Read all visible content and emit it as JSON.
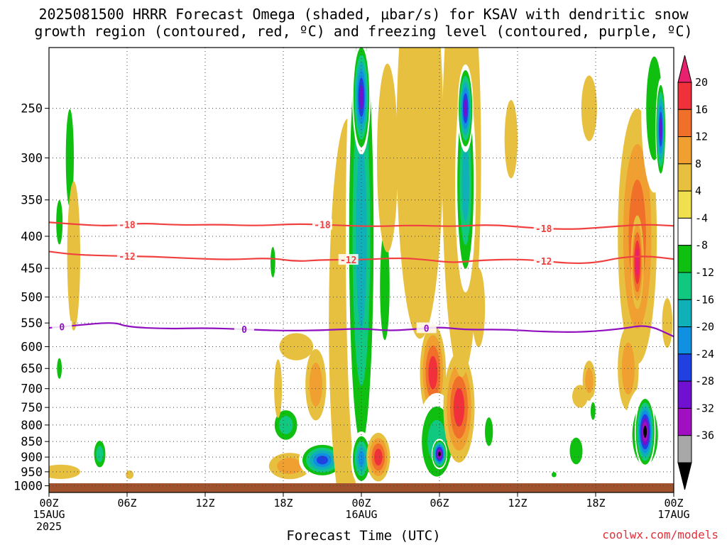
{
  "title_line1": "2025081500 HRRR Forecast Omega (shaded, μbar/s) for KSAV with dendritic snow",
  "title_line2": "growth region (contoured, red, ºC) and freezing level (contoured, purple, ºC)",
  "credit": "coolwx.com/models",
  "chart_data": {
    "type": "heatmap",
    "xlabel": "Forecast Time (UTC)",
    "x_range_hours": [
      0,
      48
    ],
    "x_ticks": [
      {
        "hour": 0,
        "label": "00Z",
        "sub1": "15AUG",
        "sub2": "2025"
      },
      {
        "hour": 6,
        "label": "06Z",
        "sub1": "",
        "sub2": ""
      },
      {
        "hour": 12,
        "label": "12Z",
        "sub1": "",
        "sub2": ""
      },
      {
        "hour": 18,
        "label": "18Z",
        "sub1": "",
        "sub2": ""
      },
      {
        "hour": 24,
        "label": "00Z",
        "sub1": "16AUG",
        "sub2": ""
      },
      {
        "hour": 30,
        "label": "06Z",
        "sub1": "",
        "sub2": ""
      },
      {
        "hour": 36,
        "label": "12Z",
        "sub1": "",
        "sub2": ""
      },
      {
        "hour": 42,
        "label": "18Z",
        "sub1": "",
        "sub2": ""
      },
      {
        "hour": 48,
        "label": "00Z",
        "sub1": "17AUG",
        "sub2": ""
      }
    ],
    "y_axis_scale": "log-pressure",
    "y_range_hPa": [
      1025,
      200
    ],
    "y_ticks": [
      250,
      300,
      350,
      400,
      450,
      500,
      550,
      600,
      650,
      700,
      750,
      800,
      850,
      900,
      950,
      1000
    ],
    "grid": true,
    "colorbar": {
      "levels": [
        20,
        16,
        12,
        8,
        4,
        -4,
        -8,
        -12,
        -16,
        -20,
        -24,
        -28,
        -32,
        -36
      ],
      "colors": [
        "#e8206e",
        "#f0303a",
        "#f0702a",
        "#f0a030",
        "#e8c040",
        "#f0e050",
        "#ffffff",
        "#10c010",
        "#10c880",
        "#10b0b8",
        "#1090e0",
        "#2040e0",
        "#7010d0",
        "#a010c0",
        "#a8a8a8",
        "#000000"
      ]
    },
    "contours": [
      {
        "label": "-18",
        "color": "#f04040",
        "points": [
          [
            0,
            380
          ],
          [
            3,
            384
          ],
          [
            5,
            385
          ],
          [
            7,
            381
          ],
          [
            10,
            384
          ],
          [
            13,
            383
          ],
          [
            16,
            385
          ],
          [
            19,
            382
          ],
          [
            22,
            384
          ],
          [
            25,
            386
          ],
          [
            28,
            384
          ],
          [
            31,
            386
          ],
          [
            34,
            383
          ],
          [
            37,
            388
          ],
          [
            40,
            390
          ],
          [
            42,
            388
          ],
          [
            44,
            385
          ],
          [
            46,
            383
          ],
          [
            48,
            385
          ]
        ],
        "label_hours": [
          6,
          21,
          38
        ]
      },
      {
        "label": "-12",
        "color": "#f04040",
        "points": [
          [
            0,
            423
          ],
          [
            2,
            428
          ],
          [
            5,
            430
          ],
          [
            8,
            431
          ],
          [
            11,
            434
          ],
          [
            14,
            436
          ],
          [
            17,
            433
          ],
          [
            19,
            439
          ],
          [
            21,
            436
          ],
          [
            24,
            436
          ],
          [
            27,
            433
          ],
          [
            29,
            436
          ],
          [
            31,
            441
          ],
          [
            33,
            437
          ],
          [
            36,
            435
          ],
          [
            38,
            438
          ],
          [
            40,
            442
          ],
          [
            42,
            441
          ],
          [
            44,
            432
          ],
          [
            46,
            430
          ],
          [
            48,
            435
          ]
        ],
        "label_hours": [
          6,
          23,
          38
        ]
      },
      {
        "label": "0",
        "color": "#9010c0",
        "points": [
          [
            0,
            560
          ],
          [
            2,
            555
          ],
          [
            5,
            548
          ],
          [
            6,
            558
          ],
          [
            9,
            562
          ],
          [
            12,
            560
          ],
          [
            15,
            563
          ],
          [
            18,
            566
          ],
          [
            21,
            565
          ],
          [
            24,
            561
          ],
          [
            26,
            566
          ],
          [
            28,
            563
          ],
          [
            30,
            558
          ],
          [
            32,
            564
          ],
          [
            35,
            563
          ],
          [
            38,
            568
          ],
          [
            41,
            569
          ],
          [
            44,
            562
          ],
          [
            46,
            553
          ],
          [
            48,
            578
          ]
        ],
        "label_hours": [
          1,
          15,
          29
        ]
      }
    ],
    "shaded_blobs": [
      {
        "t": 1.6,
        "p": 300,
        "w": 0.5,
        "h": 170,
        "value": -8
      },
      {
        "t": 0.8,
        "p": 380,
        "w": 0.4,
        "h": 100,
        "value": -8
      },
      {
        "t": 1.9,
        "p": 430,
        "w": 0.5,
        "h": 230,
        "value": 4
      },
      {
        "t": 0.8,
        "p": 650,
        "w": 0.3,
        "h": 80,
        "value": -8
      },
      {
        "t": 0.9,
        "p": 950,
        "w": 1.5,
        "h": 50,
        "value": 4
      },
      {
        "t": 3.9,
        "p": 890,
        "w": 0.6,
        "h": 120,
        "value": -12
      },
      {
        "t": 6.2,
        "p": 960,
        "w": 0.3,
        "h": 30,
        "value": 4
      },
      {
        "t": 18.2,
        "p": 800,
        "w": 1.2,
        "h": 120,
        "value": -12
      },
      {
        "t": 17.6,
        "p": 700,
        "w": 0.3,
        "h": 150,
        "value": 4
      },
      {
        "t": 17.2,
        "p": 440,
        "w": 0.3,
        "h": 80,
        "value": -8
      },
      {
        "t": 19.0,
        "p": 600,
        "w": 1.3,
        "h": 60,
        "value": 4
      },
      {
        "t": 20.5,
        "p": 690,
        "w": 0.8,
        "h": 180,
        "value": 8
      },
      {
        "t": 18.5,
        "p": 930,
        "w": 1.6,
        "h": 90,
        "value": 8
      },
      {
        "t": 21.0,
        "p": 910,
        "w": 1.8,
        "h": 120,
        "value": -24
      },
      {
        "t": 21.4,
        "p": 300,
        "w": 0.9,
        "h": 700,
        "value": 4
      },
      {
        "t": 23.0,
        "p": 550,
        "w": 1.5,
        "h": 700,
        "value": 4
      },
      {
        "t": 24.0,
        "p": 400,
        "w": 1.2,
        "h": 600,
        "value": -16
      },
      {
        "t": 24.0,
        "p": 240,
        "w": 0.7,
        "h": 100,
        "value": -28
      },
      {
        "t": 24.0,
        "p": 905,
        "w": 0.8,
        "h": 180,
        "value": -20
      },
      {
        "t": 25.3,
        "p": 900,
        "w": 0.9,
        "h": 160,
        "value": 16
      },
      {
        "t": 25.8,
        "p": 480,
        "w": 0.6,
        "h": 300,
        "value": -8
      },
      {
        "t": 26.0,
        "p": 300,
        "w": 0.8,
        "h": 200,
        "value": 4
      },
      {
        "t": 28.5,
        "p": 280,
        "w": 1.8,
        "h": 350,
        "value": 4
      },
      {
        "t": 29.5,
        "p": 660,
        "w": 1.0,
        "h": 230,
        "value": 16
      },
      {
        "t": 29.8,
        "p": 850,
        "w": 1.6,
        "h": 300,
        "value": -12
      },
      {
        "t": 30.0,
        "p": 890,
        "w": 0.6,
        "h": 100,
        "value": -36
      },
      {
        "t": 31.5,
        "p": 750,
        "w": 1.2,
        "h": 300,
        "value": 16
      },
      {
        "t": 31.7,
        "p": 300,
        "w": 1.5,
        "h": 400,
        "value": 4
      },
      {
        "t": 32.0,
        "p": 330,
        "w": 0.8,
        "h": 250,
        "value": -16
      },
      {
        "t": 32.0,
        "p": 250,
        "w": 0.6,
        "h": 80,
        "value": -28
      },
      {
        "t": 33.8,
        "p": 820,
        "w": 0.5,
        "h": 140,
        "value": -8
      },
      {
        "t": 33.0,
        "p": 520,
        "w": 0.5,
        "h": 150,
        "value": 4
      },
      {
        "t": 35.5,
        "p": 280,
        "w": 0.5,
        "h": 80,
        "value": 4
      },
      {
        "t": 40.5,
        "p": 880,
        "w": 0.8,
        "h": 140,
        "value": -8
      },
      {
        "t": 40.8,
        "p": 720,
        "w": 0.6,
        "h": 60,
        "value": 4
      },
      {
        "t": 41.5,
        "p": 680,
        "w": 0.5,
        "h": 100,
        "value": 8
      },
      {
        "t": 41.8,
        "p": 760,
        "w": 0.3,
        "h": 80,
        "value": -8
      },
      {
        "t": 38.8,
        "p": 960,
        "w": 0.3,
        "h": 30,
        "value": -8
      },
      {
        "t": 41.5,
        "p": 250,
        "w": 0.6,
        "h": 60,
        "value": 4
      },
      {
        "t": 45.2,
        "p": 400,
        "w": 1.5,
        "h": 350,
        "value": 12
      },
      {
        "t": 45.2,
        "p": 440,
        "w": 0.5,
        "h": 150,
        "value": 20
      },
      {
        "t": 44.5,
        "p": 650,
        "w": 0.8,
        "h": 200,
        "value": 8
      },
      {
        "t": 45.8,
        "p": 830,
        "w": 1.6,
        "h": 300,
        "value": -8
      },
      {
        "t": 45.8,
        "p": 820,
        "w": 0.8,
        "h": 220,
        "value": -36
      },
      {
        "t": 46.5,
        "p": 250,
        "w": 1.0,
        "h": 150,
        "value": -8
      },
      {
        "t": 47.0,
        "p": 270,
        "w": 0.4,
        "h": 100,
        "value": -28
      },
      {
        "t": 47.5,
        "p": 550,
        "w": 0.4,
        "h": 100,
        "value": 4
      }
    ]
  }
}
